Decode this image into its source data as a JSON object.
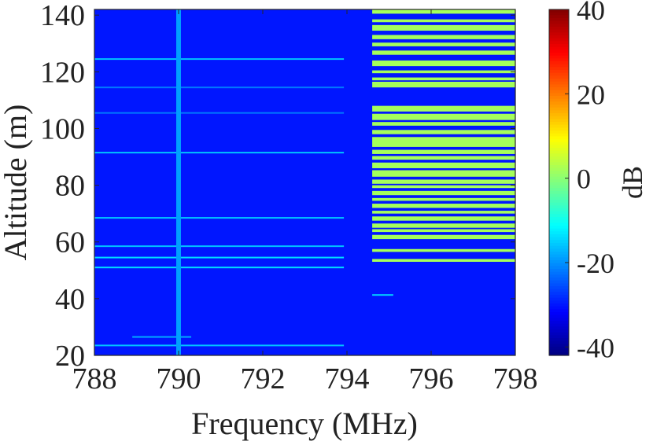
{
  "chart_data": {
    "type": "heatmap",
    "title": "",
    "xlabel": "Frequency (MHz)",
    "ylabel": "Altitude (m)",
    "xlim": [
      788,
      798
    ],
    "ylim": [
      20,
      142
    ],
    "x_ticks": [
      788,
      790,
      792,
      794,
      796,
      798
    ],
    "y_ticks": [
      20,
      40,
      60,
      80,
      100,
      120,
      140
    ],
    "colorbar": {
      "label": "dB",
      "range": [
        -42,
        40
      ],
      "ticks": [
        40,
        20,
        0,
        -20,
        -40
      ],
      "colormap": "jet"
    },
    "background_level_db": -30,
    "narrowband_line": {
      "frequency_mhz": 790.0,
      "level_db": -19
    },
    "full_band_lines": [
      {
        "altitude": 124.5,
        "level_db": -16
      },
      {
        "altitude": 114.5,
        "level_db": -22
      },
      {
        "altitude": 105.5,
        "level_db": -22
      },
      {
        "altitude": 91.5,
        "level_db": -16
      },
      {
        "altitude": 68.5,
        "level_db": -16
      },
      {
        "altitude": 58.5,
        "level_db": -16
      },
      {
        "altitude": 54.5,
        "level_db": -14
      },
      {
        "altitude": 51.0,
        "level_db": -14
      },
      {
        "altitude": 23.5,
        "level_db": -16
      }
    ],
    "partial_lines": [
      {
        "altitude": 26.5,
        "freq_start": 788.9,
        "freq_end": 790.3,
        "level_db": -18
      },
      {
        "altitude": 41.3,
        "freq_start": 794.6,
        "freq_end": 795.1,
        "level_db": -15
      }
    ],
    "high_band_region": {
      "freq_start": 794.6,
      "freq_end": 798.0,
      "level_db": 2
    },
    "high_band_altitude_bands": [
      [
        140.5,
        142
      ],
      [
        137.5,
        138.5
      ],
      [
        134.5,
        136.5
      ],
      [
        131.5,
        133
      ],
      [
        129,
        130.3
      ],
      [
        126,
        127.5
      ],
      [
        122,
        124
      ],
      [
        119.5,
        120.5
      ],
      [
        117,
        118
      ],
      [
        114.5,
        116.5
      ],
      [
        106,
        108
      ],
      [
        103,
        105.2
      ],
      [
        101,
        102.3
      ],
      [
        98,
        99.5
      ],
      [
        93.5,
        97
      ],
      [
        91,
        92.5
      ],
      [
        89,
        90.3
      ],
      [
        86,
        88
      ],
      [
        83,
        85.3
      ],
      [
        80.5,
        82
      ],
      [
        79,
        80
      ],
      [
        76.5,
        78
      ],
      [
        74.5,
        75.5
      ],
      [
        72,
        73.5
      ],
      [
        70,
        71
      ],
      [
        67.5,
        69
      ],
      [
        65,
        66.5
      ],
      [
        63.5,
        64.5
      ],
      [
        61,
        62.5
      ],
      [
        56.5,
        57.5
      ],
      [
        53,
        54
      ]
    ]
  }
}
